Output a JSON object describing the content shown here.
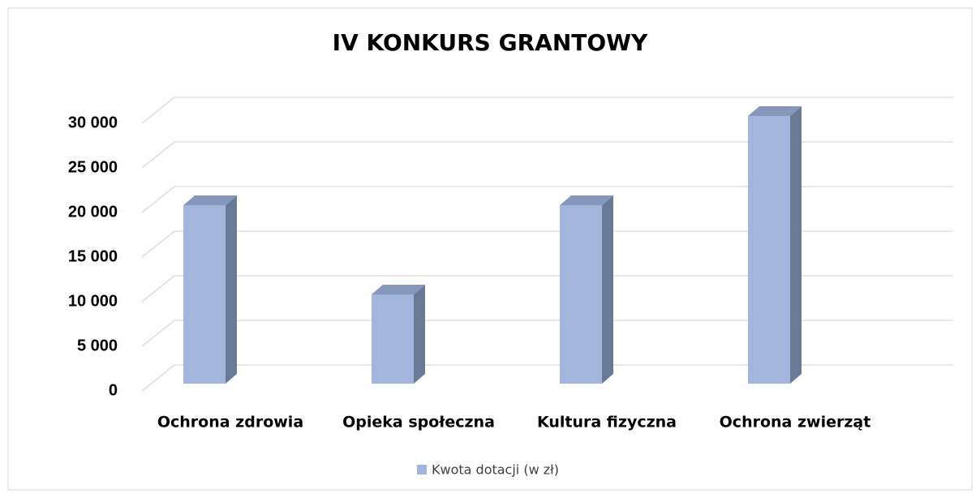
{
  "chart_data": {
    "type": "bar3d",
    "title": "IV KONKURS GRANTOWY",
    "categories": [
      "Ochrona zdrowia",
      "Opieka społeczna",
      "Kultura fizyczna",
      "Ochrona zwierząt"
    ],
    "series": [
      {
        "name": "Kwota dotacji (w zł)",
        "color": "#a2b5dc",
        "values": [
          20000,
          10000,
          20000,
          30000
        ]
      }
    ],
    "ylim": [
      0,
      30000
    ],
    "yticks": [
      0,
      {
        "value": 5000,
        "label": "5 000"
      },
      {
        "value": 10000,
        "label": "10 000"
      },
      {
        "value": 15000,
        "label": "15 000"
      },
      {
        "value": 20000,
        "label": "20 000"
      },
      {
        "value": 25000,
        "label": "25 000"
      },
      {
        "value": 30000,
        "label": "30 000"
      }
    ],
    "grid": true,
    "legend": "bottom"
  }
}
